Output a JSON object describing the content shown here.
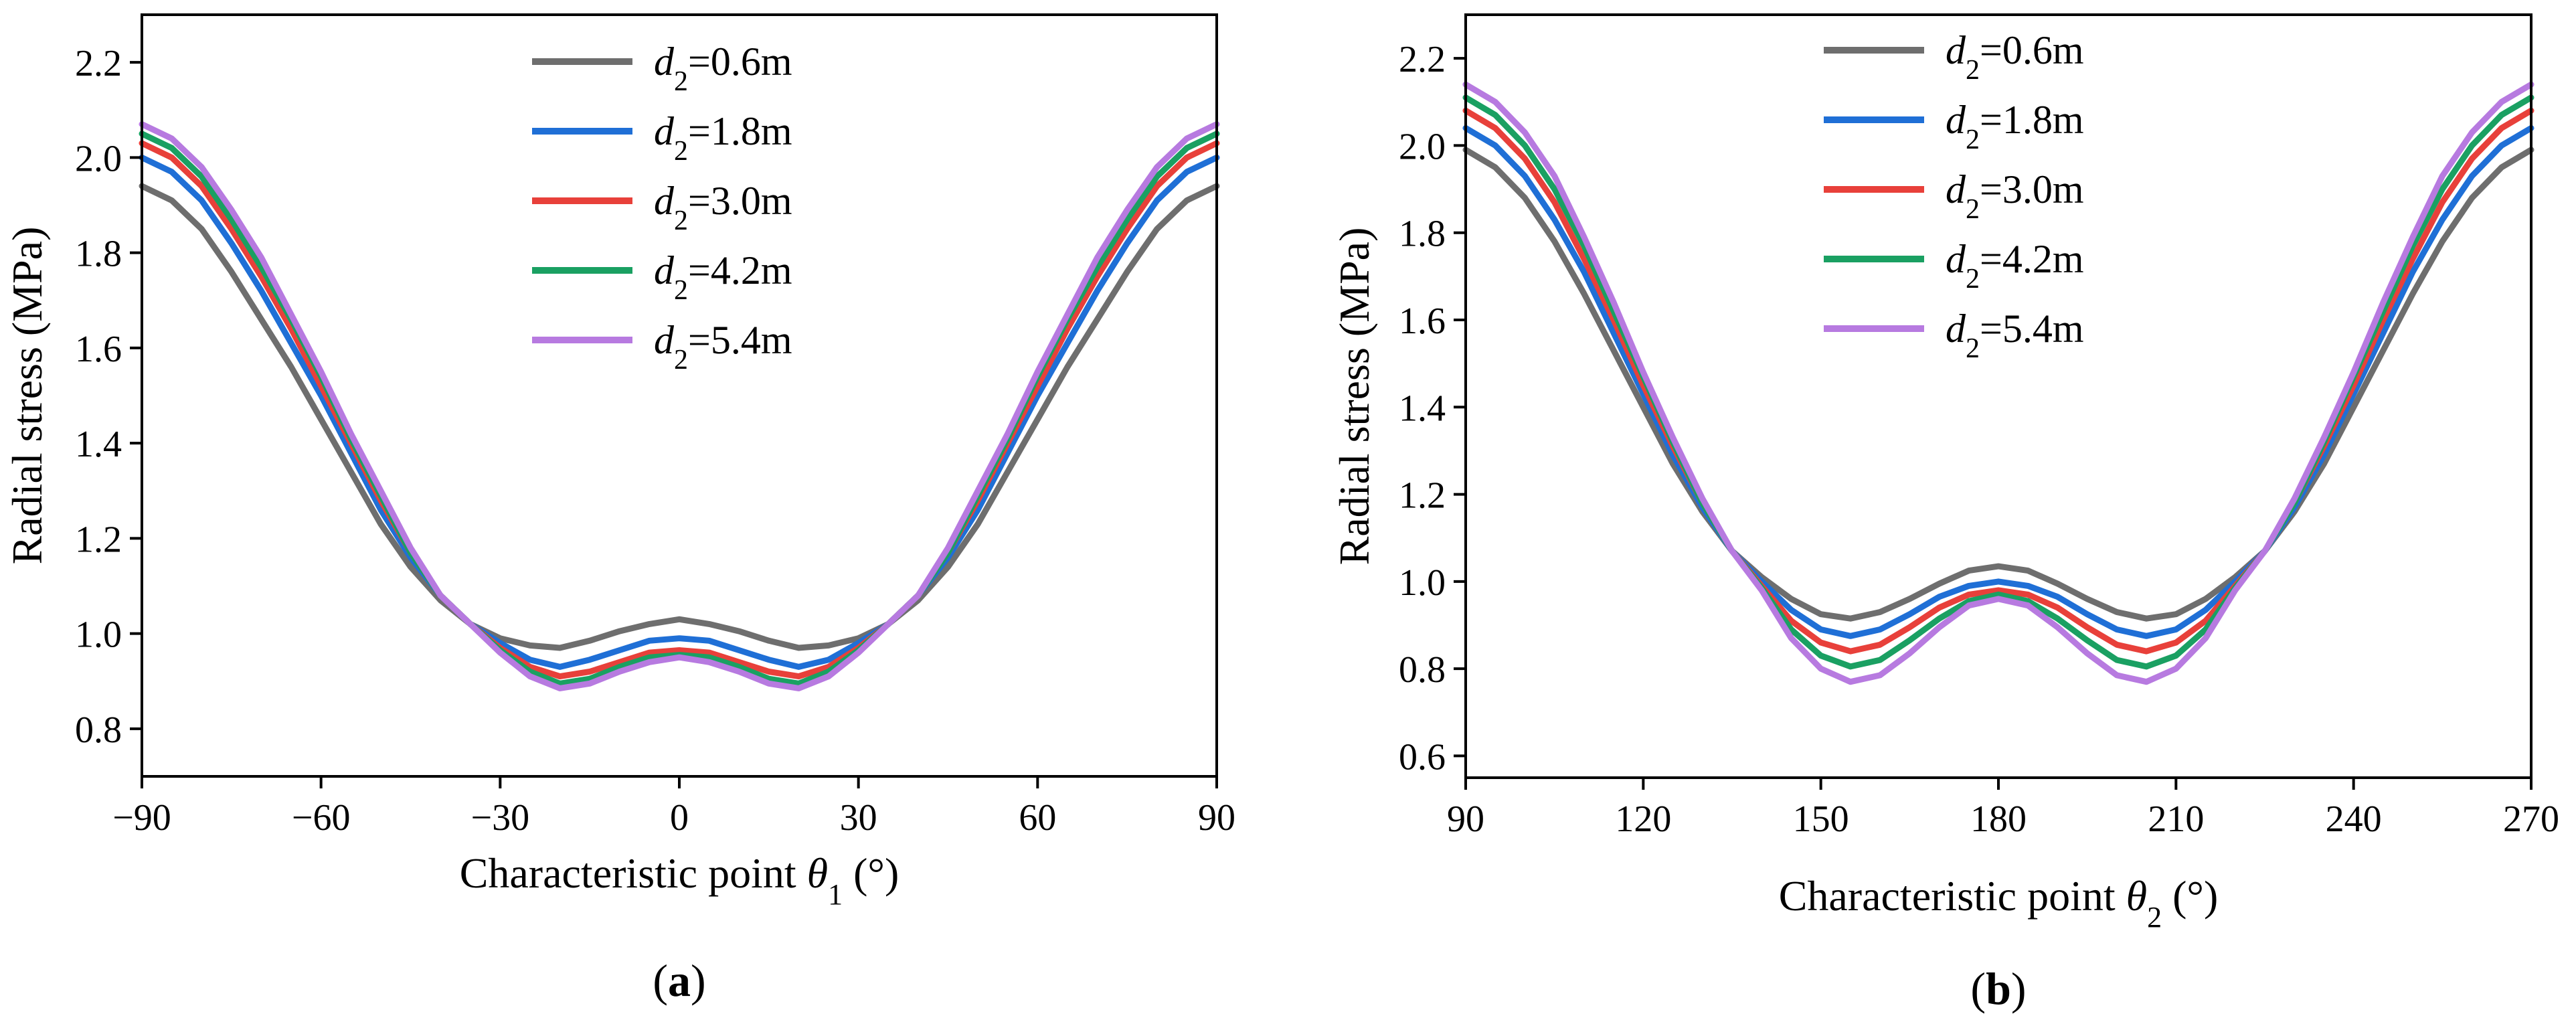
{
  "chart_data": [
    {
      "type": "line",
      "panel_label": "a",
      "xlabel_prefix": "Characteristic point ",
      "xlabel_symbol": "θ",
      "xlabel_subscript": "1",
      "xlabel_suffix": " (°)",
      "ylabel": "Radial stress (MPa)",
      "xlim": [
        -90,
        90
      ],
      "ylim": [
        0.7,
        2.3
      ],
      "xticks": [
        -90,
        -60,
        -30,
        0,
        30,
        60,
        90
      ],
      "xtick_labels": [
        "−90",
        "−60",
        "−30",
        "0",
        "30",
        "60",
        "90"
      ],
      "yticks": [
        0.8,
        1.0,
        1.2,
        1.4,
        1.6,
        1.8,
        2.0,
        2.2
      ],
      "ytick_labels": [
        "0.8",
        "1.0",
        "1.2",
        "1.4",
        "1.6",
        "1.8",
        "2.0",
        "2.2"
      ],
      "legend_position": "top-center",
      "x": [
        -90,
        -85,
        -80,
        -75,
        -70,
        -65,
        -60,
        -55,
        -50,
        -45,
        -40,
        -35,
        -30,
        -25,
        -20,
        -15,
        -10,
        -5,
        0,
        5,
        10,
        15,
        20,
        25,
        30,
        35,
        40,
        45,
        50,
        55,
        60,
        65,
        70,
        75,
        80,
        85,
        90
      ],
      "series": [
        {
          "name": "d2=0.6m",
          "var": "d",
          "sub": "2",
          "value_text": "=0.6m",
          "color": "#6e6e6e",
          "values": [
            1.94,
            1.91,
            1.85,
            1.76,
            1.66,
            1.56,
            1.45,
            1.34,
            1.23,
            1.14,
            1.07,
            1.02,
            0.99,
            0.975,
            0.97,
            0.985,
            1.005,
            1.02,
            1.03,
            1.02,
            1.005,
            0.985,
            0.97,
            0.975,
            0.99,
            1.02,
            1.07,
            1.14,
            1.23,
            1.34,
            1.45,
            1.56,
            1.66,
            1.76,
            1.85,
            1.91,
            1.94
          ]
        },
        {
          "name": "d2=1.8m",
          "var": "d",
          "sub": "2",
          "value_text": "=1.8m",
          "color": "#1f6fd6",
          "values": [
            2.0,
            1.97,
            1.91,
            1.82,
            1.72,
            1.61,
            1.5,
            1.38,
            1.26,
            1.16,
            1.08,
            1.02,
            0.98,
            0.945,
            0.93,
            0.945,
            0.965,
            0.985,
            0.99,
            0.985,
            0.965,
            0.945,
            0.93,
            0.945,
            0.98,
            1.02,
            1.08,
            1.16,
            1.26,
            1.38,
            1.5,
            1.61,
            1.72,
            1.82,
            1.91,
            1.97,
            2.0
          ]
        },
        {
          "name": "d2=3.0m",
          "var": "d",
          "sub": "2",
          "value_text": "=3.0m",
          "color": "#e8403a",
          "values": [
            2.03,
            2.0,
            1.94,
            1.85,
            1.75,
            1.64,
            1.52,
            1.4,
            1.28,
            1.17,
            1.08,
            1.02,
            0.97,
            0.93,
            0.91,
            0.92,
            0.94,
            0.96,
            0.965,
            0.96,
            0.94,
            0.92,
            0.91,
            0.93,
            0.97,
            1.02,
            1.08,
            1.17,
            1.28,
            1.4,
            1.52,
            1.64,
            1.75,
            1.85,
            1.94,
            2.0,
            2.03
          ]
        },
        {
          "name": "d2=4.2m",
          "var": "d",
          "sub": "2",
          "value_text": "=4.2m",
          "color": "#1aa062",
          "values": [
            2.05,
            2.02,
            1.96,
            1.87,
            1.77,
            1.66,
            1.54,
            1.41,
            1.29,
            1.17,
            1.08,
            1.02,
            0.965,
            0.92,
            0.895,
            0.905,
            0.93,
            0.95,
            0.955,
            0.95,
            0.93,
            0.905,
            0.895,
            0.92,
            0.965,
            1.02,
            1.08,
            1.17,
            1.29,
            1.41,
            1.54,
            1.66,
            1.77,
            1.87,
            1.96,
            2.02,
            2.05
          ]
        },
        {
          "name": "d2=5.4m",
          "var": "d",
          "sub": "2",
          "value_text": "=5.4m",
          "color": "#b77ae0",
          "values": [
            2.07,
            2.04,
            1.98,
            1.89,
            1.79,
            1.67,
            1.55,
            1.42,
            1.3,
            1.18,
            1.08,
            1.02,
            0.96,
            0.91,
            0.885,
            0.895,
            0.92,
            0.94,
            0.95,
            0.94,
            0.92,
            0.895,
            0.885,
            0.91,
            0.96,
            1.02,
            1.08,
            1.18,
            1.3,
            1.42,
            1.55,
            1.67,
            1.79,
            1.89,
            1.98,
            2.04,
            2.07
          ]
        }
      ]
    },
    {
      "type": "line",
      "panel_label": "b",
      "xlabel_prefix": "Characteristic point ",
      "xlabel_symbol": "θ",
      "xlabel_subscript": "2",
      "xlabel_suffix": " (°)",
      "ylabel": "Radial stress (MPa)",
      "xlim": [
        90,
        270
      ],
      "ylim": [
        0.55,
        2.3
      ],
      "xticks": [
        90,
        120,
        150,
        180,
        210,
        240,
        270
      ],
      "xtick_labels": [
        "90",
        "120",
        "150",
        "180",
        "210",
        "240",
        "270"
      ],
      "yticks": [
        0.6,
        0.8,
        1.0,
        1.2,
        1.4,
        1.6,
        1.8,
        2.0,
        2.2
      ],
      "ytick_labels": [
        "0.6",
        "0.8",
        "1.0",
        "1.2",
        "1.4",
        "1.6",
        "1.8",
        "2.0",
        "2.2"
      ],
      "legend_position": "top-center",
      "x": [
        90,
        95,
        100,
        105,
        110,
        115,
        120,
        125,
        130,
        135,
        140,
        145,
        150,
        155,
        160,
        165,
        170,
        175,
        180,
        185,
        190,
        195,
        200,
        205,
        210,
        215,
        220,
        225,
        230,
        235,
        240,
        245,
        250,
        255,
        260,
        265,
        270
      ],
      "series": [
        {
          "name": "d2=0.6m",
          "var": "d",
          "sub": "2",
          "value_text": "=0.6m",
          "color": "#6e6e6e",
          "values": [
            1.99,
            1.95,
            1.88,
            1.78,
            1.66,
            1.53,
            1.4,
            1.27,
            1.16,
            1.07,
            1.01,
            0.96,
            0.925,
            0.915,
            0.93,
            0.96,
            0.995,
            1.025,
            1.035,
            1.025,
            0.995,
            0.96,
            0.93,
            0.915,
            0.925,
            0.96,
            1.01,
            1.07,
            1.16,
            1.27,
            1.4,
            1.53,
            1.66,
            1.78,
            1.88,
            1.95,
            1.99
          ]
        },
        {
          "name": "d2=1.8m",
          "var": "d",
          "sub": "2",
          "value_text": "=1.8m",
          "color": "#1f6fd6",
          "values": [
            2.04,
            2.0,
            1.93,
            1.83,
            1.71,
            1.57,
            1.43,
            1.29,
            1.17,
            1.07,
            1.0,
            0.935,
            0.89,
            0.875,
            0.89,
            0.925,
            0.965,
            0.99,
            1.0,
            0.99,
            0.965,
            0.925,
            0.89,
            0.875,
            0.89,
            0.935,
            1.0,
            1.07,
            1.17,
            1.29,
            1.43,
            1.57,
            1.71,
            1.83,
            1.93,
            2.0,
            2.04
          ]
        },
        {
          "name": "d2=3.0m",
          "var": "d",
          "sub": "2",
          "value_text": "=3.0m",
          "color": "#e8403a",
          "values": [
            2.08,
            2.04,
            1.97,
            1.87,
            1.74,
            1.6,
            1.45,
            1.31,
            1.18,
            1.07,
            0.99,
            0.91,
            0.86,
            0.84,
            0.855,
            0.895,
            0.94,
            0.97,
            0.98,
            0.97,
            0.94,
            0.895,
            0.855,
            0.84,
            0.86,
            0.91,
            0.99,
            1.07,
            1.18,
            1.31,
            1.45,
            1.6,
            1.74,
            1.87,
            1.97,
            2.04,
            2.08
          ]
        },
        {
          "name": "d2=4.2m",
          "var": "d",
          "sub": "2",
          "value_text": "=4.2m",
          "color": "#1aa062",
          "values": [
            2.11,
            2.07,
            2.0,
            1.9,
            1.77,
            1.62,
            1.47,
            1.32,
            1.18,
            1.07,
            0.985,
            0.89,
            0.83,
            0.805,
            0.82,
            0.865,
            0.915,
            0.955,
            0.97,
            0.955,
            0.915,
            0.865,
            0.82,
            0.805,
            0.83,
            0.89,
            0.985,
            1.07,
            1.18,
            1.32,
            1.47,
            1.62,
            1.77,
            1.9,
            2.0,
            2.07,
            2.11
          ]
        },
        {
          "name": "d2=5.4m",
          "var": "d",
          "sub": "2",
          "value_text": "=5.4m",
          "color": "#b77ae0",
          "values": [
            2.14,
            2.1,
            2.03,
            1.93,
            1.79,
            1.64,
            1.48,
            1.33,
            1.19,
            1.07,
            0.98,
            0.87,
            0.8,
            0.77,
            0.785,
            0.835,
            0.895,
            0.945,
            0.96,
            0.945,
            0.895,
            0.835,
            0.785,
            0.77,
            0.8,
            0.87,
            0.98,
            1.07,
            1.19,
            1.33,
            1.48,
            1.64,
            1.79,
            1.93,
            2.03,
            2.1,
            2.14
          ]
        }
      ]
    }
  ]
}
